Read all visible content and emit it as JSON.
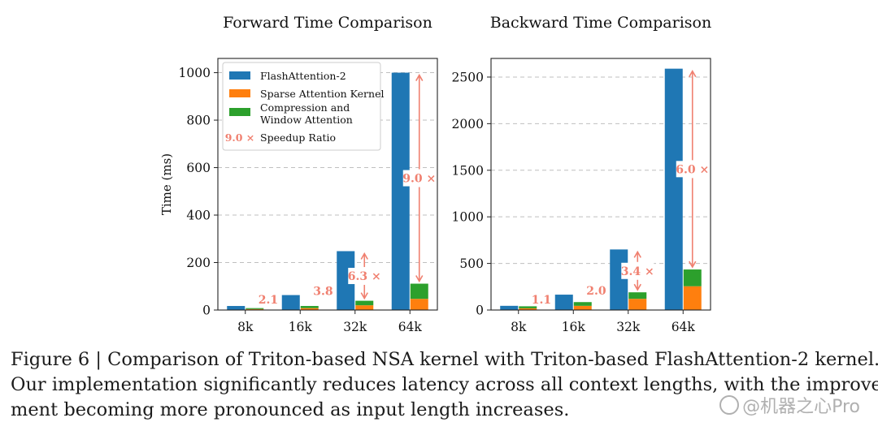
{
  "chart_data": [
    {
      "type": "bar",
      "stacked_groups": true,
      "title": "Forward Time Comparison",
      "xlabel": "",
      "ylabel": "Time (ms)",
      "categories": [
        "8k",
        "16k",
        "32k",
        "64k"
      ],
      "ylim": [
        0,
        1060
      ],
      "yticks": [
        0,
        200,
        400,
        600,
        800,
        1000
      ],
      "grid": "y-dashed",
      "series": [
        {
          "name": "FlashAttention-2",
          "values": [
            17,
            63,
            248,
            1000
          ],
          "color": "#1f77b4",
          "group": "flash"
        },
        {
          "name": "Sparse Attention Kernel",
          "values": [
            4,
            8,
            20,
            47
          ],
          "color": "#ff7f0e",
          "group": "nsa"
        },
        {
          "name": "Compression and Window Attention",
          "values": [
            4,
            9,
            19,
            64
          ],
          "color": "#2ca02c",
          "group": "nsa"
        }
      ],
      "speedup_labels": [
        "2.1 ×",
        "3.8 ×",
        "6.3 ×",
        "9.0 ×"
      ],
      "legend": {
        "placement": "top-left",
        "items": [
          "FlashAttention-2",
          "Sparse Attention Kernel",
          "Compression and",
          "Window Attention"
        ],
        "speedup_sample": "9.0 ×",
        "speedup_text": "Speedup Ratio"
      }
    },
    {
      "type": "bar",
      "stacked_groups": true,
      "title": "Backward Time Comparison",
      "xlabel": "",
      "ylabel": "",
      "categories": [
        "8k",
        "16k",
        "32k",
        "64k"
      ],
      "ylim": [
        0,
        2700
      ],
      "yticks": [
        0,
        500,
        1000,
        1500,
        2000,
        2500
      ],
      "grid": "y-dashed",
      "series": [
        {
          "name": "FlashAttention-2",
          "values": [
            45,
            165,
            650,
            2590
          ],
          "color": "#1f77b4",
          "group": "flash"
        },
        {
          "name": "Sparse Attention Kernel",
          "values": [
            18,
            45,
            120,
            255
          ],
          "color": "#ff7f0e",
          "group": "nsa"
        },
        {
          "name": "Compression and Window Attention",
          "values": [
            22,
            40,
            70,
            180
          ],
          "color": "#2ca02c",
          "group": "nsa"
        }
      ],
      "speedup_labels": [
        "1.1 ×",
        "2.0 ×",
        "3.4 ×",
        "6.0 ×"
      ]
    }
  ],
  "caption": {
    "line1": "Figure 6 | Comparison of Triton-based NSA kernel with Triton-based FlashAttention-2 kernel.",
    "line2": "Our implementation significantly reduces latency across all context lengths, with the improve-",
    "line3": "ment becoming more pronounced as input length increases."
  },
  "watermark": "@机器之心Pro",
  "colors": {
    "speedup": "#f08070",
    "grid": "#bfbfbf",
    "axis": "#222222"
  }
}
